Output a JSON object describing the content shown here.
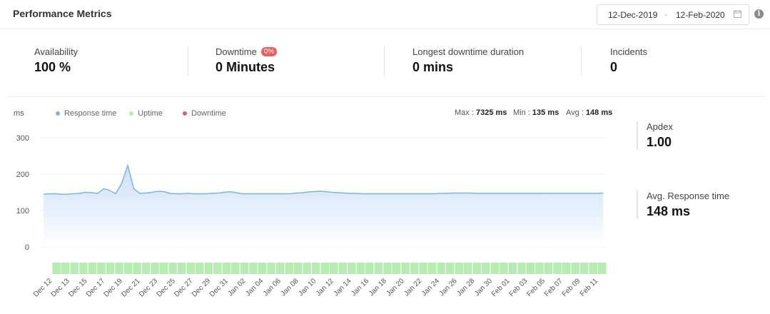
{
  "header": {
    "title": "Performance Metrics",
    "date_start": "12-Dec-2019",
    "date_separator": "-",
    "date_end": "12-Feb-2020",
    "calendar_icon": "calendar-icon",
    "info_icon": "info-icon",
    "info_glyph": "i"
  },
  "metrics": [
    {
      "label": "Availability",
      "value": "100 %"
    },
    {
      "label": "Downtime",
      "value": "0 Minutes",
      "badge": "0%"
    },
    {
      "label": "Longest downtime duration",
      "value": "0 mins"
    },
    {
      "label": "Incidents",
      "value": "0"
    }
  ],
  "side": {
    "apdex_label": "Apdex",
    "apdex_value": "1.00",
    "avg_label": "Avg. Response time",
    "avg_value": "148 ms"
  },
  "colors": {
    "response": "#7ab3e6",
    "uptime": "#b6ecb1",
    "downtime": "#ef5b5b",
    "fill_top": "#c9e0f8",
    "fill_bottom": "#ffffff"
  },
  "chart_data": {
    "type": "area",
    "ylabel": "ms",
    "ylim": [
      -10,
      320
    ],
    "yticks": [
      0,
      100,
      200,
      300
    ],
    "legend": [
      "Response time",
      "Uptime",
      "Downtime"
    ],
    "stats": {
      "max_label": "Max :",
      "max_value": "7325 ms",
      "min_label": "Min :",
      "min_value": "135 ms",
      "avg_label": "Avg :",
      "avg_value": "148 ms"
    },
    "x_tick_labels": [
      "Dec 12",
      "Dec 13",
      "Dec 15",
      "Dec 17",
      "Dec 19",
      "Dec 21",
      "Dec 23",
      "Dec 25",
      "Dec 27",
      "Dec 29",
      "Dec 31",
      "Jan 02",
      "Jan 04",
      "Jan 06",
      "Jan 08",
      "Jan 10",
      "Jan 12",
      "Jan 14",
      "Jan 16",
      "Jan 18",
      "Jan 20",
      "Jan 22",
      "Jan 24",
      "Jan 26",
      "Jan 28",
      "Jan 30",
      "Feb 01",
      "Feb 03",
      "Feb 05",
      "Feb 07",
      "Feb 09",
      "Feb 11"
    ],
    "response_time": [
      145,
      146,
      146,
      145,
      145,
      146,
      147,
      150,
      149,
      147,
      160,
      155,
      146,
      175,
      224,
      160,
      147,
      148,
      150,
      153,
      152,
      147,
      146,
      146,
      147,
      146,
      146,
      146,
      147,
      148,
      150,
      152,
      149,
      146,
      146,
      146,
      146,
      146,
      146,
      146,
      146,
      146,
      148,
      149,
      151,
      152,
      153,
      152,
      150,
      149,
      148,
      147,
      147,
      146,
      146,
      146,
      146,
      146,
      146,
      146,
      146,
      146,
      146,
      146,
      146,
      146,
      147,
      147,
      148,
      148,
      148,
      148,
      147,
      147,
      147,
      147,
      147,
      147,
      147,
      147,
      147,
      147,
      147,
      147,
      147,
      147,
      147,
      147,
      147,
      147,
      147,
      147,
      147,
      148
    ],
    "uptime_count": 62
  }
}
